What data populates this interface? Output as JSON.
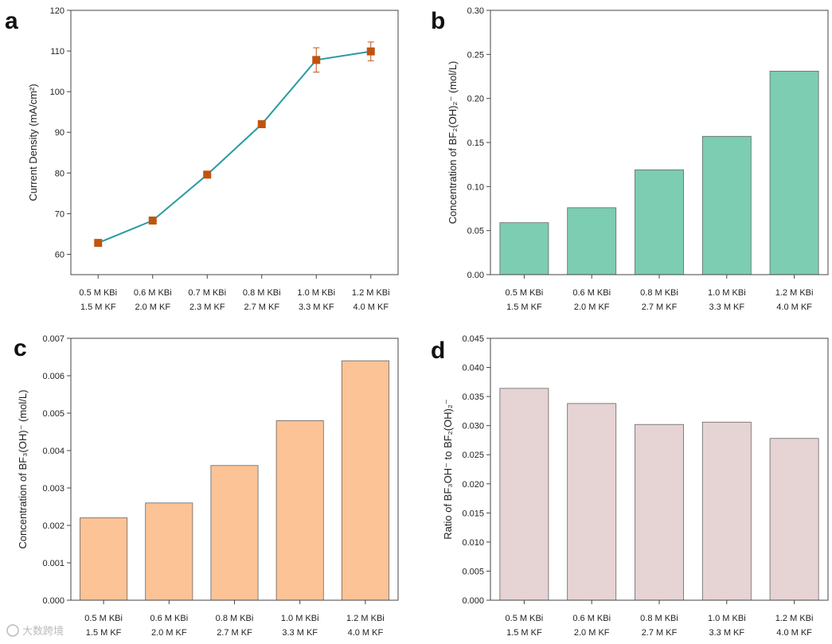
{
  "watermark": "大数跨境",
  "chart_data": [
    {
      "panel": "a",
      "type": "line",
      "ylabel": "Current Density (mA/cm²)",
      "categories": [
        [
          "0.5 M KBi",
          "1.5 M KF"
        ],
        [
          "0.6 M KBi",
          "2.0 M KF"
        ],
        [
          "0.7 M KBi",
          "2.3 M KF"
        ],
        [
          "0.8 M KBi",
          "2.7 M KF"
        ],
        [
          "1.0 M KBi",
          "3.3 M KF"
        ],
        [
          "1.2 M KBi",
          "4.0 M KF"
        ]
      ],
      "values": [
        62.8,
        68.3,
        79.6,
        92.0,
        107.8,
        109.9
      ],
      "errors": [
        0.8,
        0.8,
        0.8,
        0.8,
        3.0,
        2.3
      ],
      "ylim": [
        55,
        120
      ],
      "yticks": [
        60,
        70,
        80,
        90,
        100,
        110,
        120
      ],
      "line_color": "#2a9ba3",
      "marker_color": "#c0540f"
    },
    {
      "panel": "b",
      "type": "bar",
      "ylabel": "Concentration of BF₂(OH)₂⁻ (mol/L)",
      "categories": [
        [
          "0.5 M KBi",
          "1.5 M KF"
        ],
        [
          "0.6 M KBi",
          "2.0 M KF"
        ],
        [
          "0.8 M KBi",
          "2.7 M KF"
        ],
        [
          "1.0 M KBi",
          "3.3 M KF"
        ],
        [
          "1.2 M KBi",
          "4.0 M KF"
        ]
      ],
      "values": [
        0.059,
        0.076,
        0.119,
        0.157,
        0.231
      ],
      "ylim": [
        0,
        0.3
      ],
      "yticks": [
        "0.00",
        "0.05",
        "0.10",
        "0.15",
        "0.20",
        "0.25",
        "0.30"
      ],
      "bar_color": "#7ccdb2"
    },
    {
      "panel": "c",
      "type": "bar",
      "ylabel": "Concentration of BF₃(OH)⁻ (mol/L)",
      "categories": [
        [
          "0.5 M KBi",
          "1.5 M KF"
        ],
        [
          "0.6 M KBi",
          "2.0 M KF"
        ],
        [
          "0.8 M KBi",
          "2.7 M KF"
        ],
        [
          "1.0 M KBi",
          "3.3 M KF"
        ],
        [
          "1.2 M KBi",
          "4.0 M KF"
        ]
      ],
      "values": [
        0.0022,
        0.0026,
        0.0036,
        0.0048,
        0.0064
      ],
      "ylim": [
        0,
        0.007
      ],
      "yticks": [
        "0.000",
        "0.001",
        "0.002",
        "0.003",
        "0.004",
        "0.005",
        "0.006",
        "0.007"
      ],
      "bar_color": "#fbc396"
    },
    {
      "panel": "d",
      "type": "bar",
      "ylabel": "Ratio of BF₃OH⁻ to BF₂(OH)₂⁻",
      "categories": [
        [
          "0.5 M KBi",
          "1.5 M KF"
        ],
        [
          "0.6 M KBi",
          "2.0 M KF"
        ],
        [
          "0.8 M KBi",
          "2.7 M KF"
        ],
        [
          "1.0 M KBi",
          "3.3 M KF"
        ],
        [
          "1.2 M KBi",
          "4.0 M KF"
        ]
      ],
      "values": [
        0.0364,
        0.0338,
        0.0302,
        0.0306,
        0.0278
      ],
      "ylim": [
        0,
        0.045
      ],
      "yticks": [
        "0.000",
        "0.005",
        "0.010",
        "0.015",
        "0.020",
        "0.025",
        "0.030",
        "0.035",
        "0.040",
        "0.045"
      ],
      "bar_color": "#e6d3d3"
    }
  ]
}
